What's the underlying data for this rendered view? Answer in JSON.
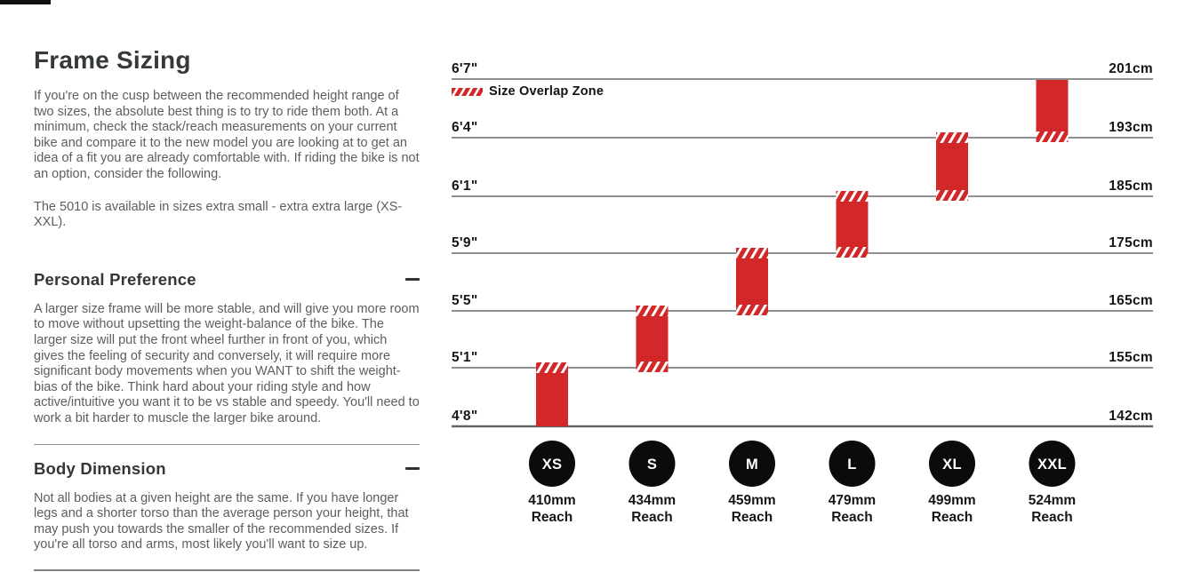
{
  "page": {
    "title": "Frame Sizing",
    "intro": "If you're on the cusp between the recommended height range of two sizes, the absolute best thing is to try to ride them both. At a minimum, check the stack/reach measurements on your current bike and compare it to the new model you are looking at to get an idea of a fit you are already comfortable with. If riding the bike is not an option, consider the following.",
    "availability": "The 5010 is available in sizes extra small - extra extra large (XS-XXL).",
    "sections": [
      {
        "heading": "Personal Preference",
        "collapse_icon": "minus",
        "body": "A larger size frame will be more stable, and will give you more room to move without upsetting the weight-balance of the bike. The larger size will put the front wheel further in front of you, which gives the feeling of security and conversely, it will require more significant body movements when you WANT to shift the weight-bias of the bike. Think hard about your riding style and how active/intuitive you want it to be vs stable and speedy. You'll need to work a bit harder to muscle the larger bike around."
      },
      {
        "heading": "Body Dimension",
        "collapse_icon": "minus",
        "body": "Not all bodies at a given height are the same. If you have longer legs and a shorter torso than the average person your height, that may push you towards the smaller of the recommended sizes. If you're all torso and arms, most likely you'll want to size up."
      }
    ]
  },
  "chart_data": {
    "type": "bar",
    "title": "",
    "legend": "Size Overlap Zone",
    "legend_position": "top-left",
    "orientation": "vertical-range-bars",
    "grid": true,
    "y_axis_left_unit": "feet/inches",
    "y_axis_right_unit": "cm",
    "gridlines": [
      {
        "ft": "6'7\"",
        "cm": "201cm",
        "height_cm": 201
      },
      {
        "ft": "6'4\"",
        "cm": "193cm",
        "height_cm": 193
      },
      {
        "ft": "6'1\"",
        "cm": "185cm",
        "height_cm": 185
      },
      {
        "ft": "5'9\"",
        "cm": "175cm",
        "height_cm": 175
      },
      {
        "ft": "5'5\"",
        "cm": "165cm",
        "height_cm": 165
      },
      {
        "ft": "5'1\"",
        "cm": "155cm",
        "height_cm": 155
      },
      {
        "ft": "4'8\"",
        "cm": "142cm",
        "height_cm": 142
      }
    ],
    "ylim_cm": [
      142,
      201
    ],
    "reach_caption": "Reach",
    "sizes": [
      {
        "label": "XS",
        "reach": "410mm",
        "range_cm": [
          142,
          155
        ],
        "range_ft": [
          "4'8\"",
          "5'1\""
        ],
        "overlap_bottom": false,
        "overlap_top": true
      },
      {
        "label": "S",
        "reach": "434mm",
        "range_cm": [
          155,
          165
        ],
        "range_ft": [
          "5'1\"",
          "5'5\""
        ],
        "overlap_bottom": true,
        "overlap_top": true
      },
      {
        "label": "M",
        "reach": "459mm",
        "range_cm": [
          165,
          175
        ],
        "range_ft": [
          "5'5\"",
          "5'9\""
        ],
        "overlap_bottom": true,
        "overlap_top": true
      },
      {
        "label": "L",
        "reach": "479mm",
        "range_cm": [
          175,
          185
        ],
        "range_ft": [
          "5'9\"",
          "6'1\""
        ],
        "overlap_bottom": true,
        "overlap_top": true
      },
      {
        "label": "XL",
        "reach": "499mm",
        "range_cm": [
          185,
          193
        ],
        "range_ft": [
          "6'1\"",
          "6'4\""
        ],
        "overlap_bottom": true,
        "overlap_top": true
      },
      {
        "label": "XXL",
        "reach": "524mm",
        "range_cm": [
          193,
          201
        ],
        "range_ft": [
          "6'4\"",
          "6'7\""
        ],
        "overlap_bottom": true,
        "overlap_top": false
      }
    ],
    "colors": {
      "bar_red": "#d2282a",
      "hatch_white": "#ffffff",
      "gridline": "#6a6c6e",
      "baseline": "#626466",
      "circle_black": "#0b0b0b",
      "label_text": "#161616"
    }
  }
}
